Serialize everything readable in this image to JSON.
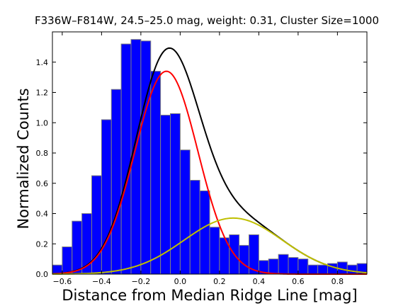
{
  "chart_data": {
    "type": "bar",
    "title": "F336W–F814W, 24.5–25.0 mag, weight: 0.31, Cluster Size=1000",
    "xlabel": "Distance from Median Ridge Line [mag]",
    "ylabel": "Normalized Counts",
    "xlim": [
      -0.65,
      0.95
    ],
    "ylim": [
      0.0,
      1.6
    ],
    "x_ticks": [
      -0.6,
      -0.4,
      -0.2,
      0.0,
      0.2,
      0.4,
      0.6,
      0.8
    ],
    "x_tick_labels": [
      "−0.6",
      "−0.4",
      "−0.2",
      "0.0",
      "0.2",
      "0.4",
      "0.6",
      "0.8"
    ],
    "y_ticks": [
      0.0,
      0.2,
      0.4,
      0.6,
      0.8,
      1.0,
      1.2,
      1.4
    ],
    "y_tick_labels": [
      "0.0",
      "0.2",
      "0.4",
      "0.6",
      "0.8",
      "1.0",
      "1.2",
      "1.4"
    ],
    "grid": false,
    "bins": {
      "start": -0.65,
      "width": 0.05,
      "values": [
        0.06,
        0.18,
        0.35,
        0.4,
        0.65,
        1.02,
        1.22,
        1.52,
        1.55,
        1.54,
        1.34,
        1.05,
        1.06,
        0.82,
        0.62,
        0.55,
        0.31,
        0.24,
        0.26,
        0.19,
        0.26,
        0.09,
        0.1,
        0.13,
        0.11,
        0.1,
        0.06,
        0.06,
        0.07,
        0.08,
        0.06,
        0.07
      ]
    },
    "series": [
      {
        "type": "line",
        "color": "#000000",
        "curve": "total",
        "components": [
          {
            "amp": 1.34,
            "mu": -0.07,
            "sigma": 0.16
          },
          {
            "amp": 0.37,
            "mu": 0.27,
            "sigma": 0.25
          }
        ]
      },
      {
        "type": "line",
        "color": "#ff0000",
        "curve": "gaussian",
        "components": [
          {
            "amp": 1.34,
            "mu": -0.07,
            "sigma": 0.16
          }
        ]
      },
      {
        "type": "line",
        "color": "#bfbf00",
        "curve": "gaussian",
        "components": [
          {
            "amp": 0.37,
            "mu": 0.27,
            "sigma": 0.25
          }
        ]
      }
    ],
    "colors": {
      "bar_fill": "#0000ff",
      "bar_edge": "#7f7f7f"
    }
  }
}
